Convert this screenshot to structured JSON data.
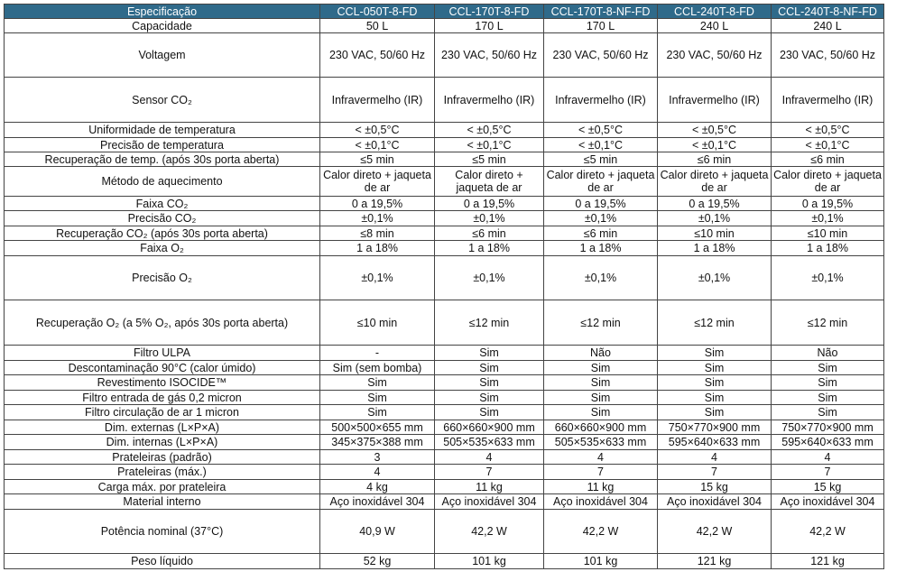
{
  "header": [
    "Especificação",
    "CCL-050T-8-FD",
    "CCL-170T-8-FD",
    "CCL-170T-8-NF-FD",
    "CCL-240T-8-FD",
    "CCL-240T-8-NF-FD"
  ],
  "rows": [
    {
      "h": 16,
      "cells": [
        "Capacidade",
        "50 L",
        "170 L",
        "170 L",
        "240 L",
        "240 L"
      ]
    },
    {
      "h": 49,
      "cells": [
        "Voltagem",
        "230 VAC, 50/60 Hz",
        "230 VAC, 50/60 Hz",
        "230 VAC, 50/60 Hz",
        "230 VAC, 50/60 Hz",
        "230 VAC, 50/60 Hz"
      ]
    },
    {
      "h": 50,
      "cells": [
        "Sensor CO₂",
        "Infravermelho (IR)",
        "Infravermelho (IR)",
        "Infravermelho (IR)",
        "Infravermelho (IR)",
        "Infravermelho (IR)"
      ]
    },
    {
      "h": 17,
      "cells": [
        "Uniformidade de temperatura",
        "< ±0,5°C",
        "< ±0,5°C",
        "< ±0,5°C",
        "< ±0,5°C",
        "< ±0,5°C"
      ]
    },
    {
      "h": 16,
      "cells": [
        "Precisão de temperatura",
        "< ±0,1°C",
        "< ±0,1°C",
        "< ±0,1°C",
        "< ±0,1°C",
        "< ±0,1°C"
      ]
    },
    {
      "h": 16,
      "cells": [
        "Recuperação de temp. (após 30s porta aberta)",
        "≤5 min",
        "≤5 min",
        "≤5 min",
        "≤6 min",
        "≤6 min"
      ]
    },
    {
      "h": 33,
      "cells": [
        "Método de aquecimento",
        "Calor direto + jaqueta de ar",
        "Calor direto + jaqueta de ar",
        "Calor direto + jaqueta de ar",
        "Calor direto + jaqueta de ar",
        "Calor direto + jaqueta de ar"
      ]
    },
    {
      "h": 16,
      "cells": [
        "Faixa CO₂",
        "0 a 19,5%",
        "0 a 19,5%",
        "0 a 19,5%",
        "0 a 19,5%",
        "0 a 19,5%"
      ]
    },
    {
      "h": 17,
      "cells": [
        "Precisão CO₂",
        "±0,1%",
        "±0,1%",
        "±0,1%",
        "±0,1%",
        "±0,1%"
      ]
    },
    {
      "h": 16,
      "cells": [
        "Recuperação CO₂ (após 30s porta aberta)",
        "≤8 min",
        "≤6 min",
        "≤6 min",
        "≤10 min",
        "≤10 min"
      ]
    },
    {
      "h": 17,
      "cells": [
        "Faixa O₂",
        "1 a 18%",
        "1 a 18%",
        "1 a 18%",
        "1 a 18%",
        "1 a 18%"
      ]
    },
    {
      "h": 49,
      "cells": [
        "Precisão O₂",
        "±0,1%",
        "±0,1%",
        "±0,1%",
        "±0,1%",
        "±0,1%"
      ]
    },
    {
      "h": 50,
      "cells": [
        "Recuperação O₂ (a 5% O₂, após 30s porta aberta)",
        "≤10 min",
        "≤12 min",
        "≤12 min",
        "≤12 min",
        "≤12 min"
      ]
    },
    {
      "h": 17,
      "cells": [
        "Filtro ULPA",
        "-",
        "Sim",
        "Não",
        "Sim",
        "Não"
      ]
    },
    {
      "h": 16,
      "cells": [
        "Descontaminação 90°C (calor úmido)",
        "Sim (sem bomba)",
        "Sim",
        "Sim",
        "Sim",
        "Sim"
      ]
    },
    {
      "h": 17,
      "cells": [
        "Revestimento ISOCIDE™",
        "Sim",
        "Sim",
        "Sim",
        "Sim",
        "Sim"
      ]
    },
    {
      "h": 16,
      "cells": [
        "Filtro entrada de gás 0,2 micron",
        "Sim",
        "Sim",
        "Sim",
        "Sim",
        "Sim"
      ]
    },
    {
      "h": 17,
      "cells": [
        "Filtro circulação de ar 1 micron",
        "Sim",
        "Sim",
        "Sim",
        "Sim",
        "Sim"
      ]
    },
    {
      "h": 16,
      "cells": [
        "Dim. externas (L×P×A)",
        "500×500×655 mm",
        "660×660×900 mm",
        "660×660×900 mm",
        "750×770×900 mm",
        "750×770×900 mm"
      ]
    },
    {
      "h": 17,
      "cells": [
        "Dim. internas (L×P×A)",
        "345×375×388 mm",
        "505×535×633 mm",
        "505×535×633 mm",
        "595×640×633 mm",
        "595×640×633 mm"
      ]
    },
    {
      "h": 16,
      "cells": [
        "Prateleiras (padrão)",
        "3",
        "4",
        "4",
        "4",
        "4"
      ]
    },
    {
      "h": 17,
      "cells": [
        "Prateleiras (máx.)",
        "4",
        "7",
        "7",
        "7",
        "7"
      ]
    },
    {
      "h": 16,
      "cells": [
        "Carga máx. por prateleira",
        "4 kg",
        "11 kg",
        "11 kg",
        "15 kg",
        "15 kg"
      ]
    },
    {
      "h": 17,
      "cells": [
        "Material interno",
        "Aço inoxidável 304",
        "Aço inoxidável 304",
        "Aço inoxidável 304",
        "Aço inoxidável 304",
        "Aço inoxidável 304"
      ]
    },
    {
      "h": 49,
      "cells": [
        "Potência nominal (37°C)",
        "40,9 W",
        "42,2 W",
        "42,2 W",
        "42,2 W",
        "42,2 W"
      ]
    },
    {
      "h": 17,
      "cells": [
        "Peso líquido",
        "52 kg",
        "101 kg",
        "101 kg",
        "121 kg",
        "121 kg"
      ]
    }
  ]
}
